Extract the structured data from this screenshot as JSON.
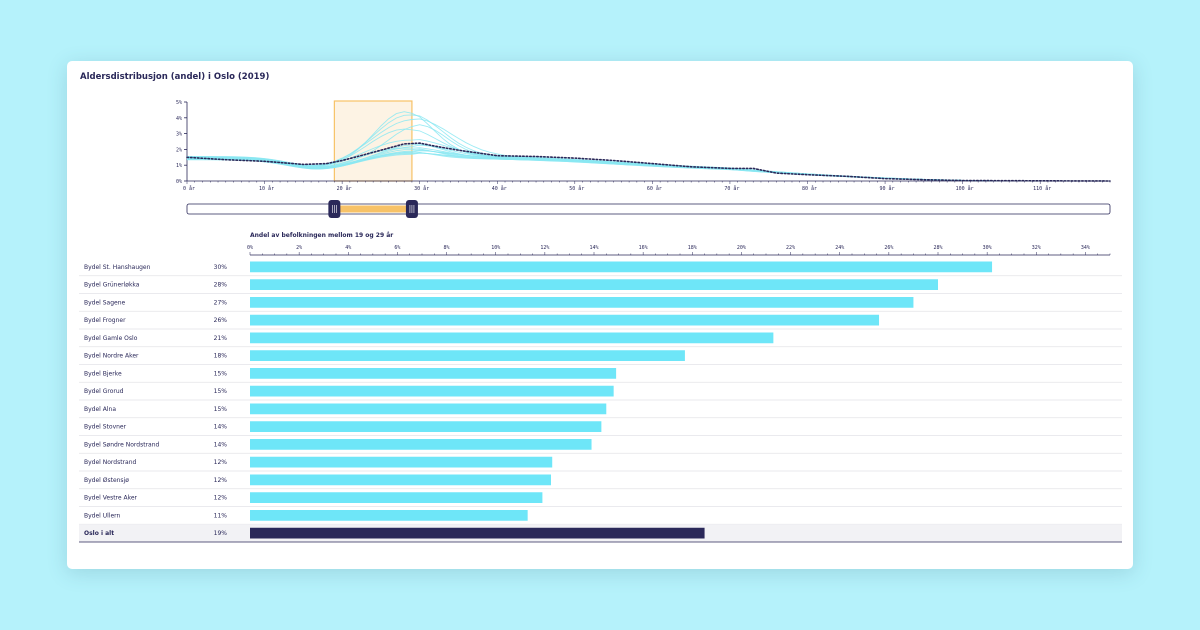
{
  "title": "Aldersdistribusjon (andel) i Oslo (2019)",
  "colors": {
    "line_district": "#8be8f2",
    "line_total": "#2a2859",
    "bar": "#6ee6f8",
    "bar_total": "#2a2859",
    "brush_fill": "#fdf3e4",
    "brush_stroke": "#f7c267",
    "slider_handle": "#2a2859"
  },
  "chart_data": [
    {
      "type": "line",
      "y_ticks": [
        "0%",
        "1%",
        "2%",
        "3%",
        "4%",
        "5%"
      ],
      "ylim": [
        0,
        5
      ],
      "x_ticks": [
        "0 år",
        "10 år",
        "20 år",
        "30 år",
        "40 år",
        "50 år",
        "60 år",
        "70 år",
        "80 år",
        "90 år",
        "100 år",
        "110 år"
      ],
      "xlim": [
        0,
        119
      ],
      "selection": [
        19,
        29
      ],
      "total_line_style": "dotted",
      "total_points": [
        [
          0,
          1.5
        ],
        [
          5,
          1.35
        ],
        [
          10,
          1.25
        ],
        [
          15,
          1.05
        ],
        [
          18,
          1.1
        ],
        [
          20,
          1.3
        ],
        [
          22,
          1.55
        ],
        [
          25,
          1.95
        ],
        [
          28,
          2.35
        ],
        [
          30,
          2.4
        ],
        [
          32,
          2.2
        ],
        [
          35,
          1.95
        ],
        [
          40,
          1.6
        ],
        [
          45,
          1.55
        ],
        [
          50,
          1.45
        ],
        [
          55,
          1.3
        ],
        [
          60,
          1.1
        ],
        [
          65,
          0.9
        ],
        [
          70,
          0.8
        ],
        [
          73,
          0.8
        ],
        [
          76,
          0.5
        ],
        [
          80,
          0.4
        ],
        [
          85,
          0.3
        ],
        [
          90,
          0.15
        ],
        [
          95,
          0.08
        ],
        [
          100,
          0.03
        ],
        [
          110,
          0.01
        ],
        [
          119,
          0
        ]
      ],
      "district_peaks": [
        4.4,
        4.2,
        3.9,
        3.5,
        3.3,
        2.6,
        2.3,
        2.2,
        2.1,
        2.0,
        1.9,
        1.85,
        1.8,
        1.75,
        1.7
      ]
    },
    {
      "type": "bar",
      "title": "Andel av befolkningen mellom 19 og 29 år",
      "xlim": [
        0,
        35
      ],
      "x_ticks": [
        "0%",
        "2%",
        "4%",
        "6%",
        "8%",
        "10%",
        "12%",
        "14%",
        "16%",
        "18%",
        "20%",
        "22%",
        "24%",
        "26%",
        "28%",
        "30%",
        "32%",
        "34%"
      ],
      "categories": [
        "Bydel St. Hanshaugen",
        "Bydel Grünerløkka",
        "Bydel Sagene",
        "Bydel Frogner",
        "Bydel Gamle Oslo",
        "Bydel Nordre Aker",
        "Bydel Bjerke",
        "Bydel Grorud",
        "Bydel Alna",
        "Bydel Stovner",
        "Bydel Søndre Nordstrand",
        "Bydel Nordstrand",
        "Bydel Østensjø",
        "Bydel Vestre Aker",
        "Bydel Ullern",
        "Oslo i alt"
      ],
      "labels": [
        "30%",
        "28%",
        "27%",
        "26%",
        "21%",
        "18%",
        "15%",
        "15%",
        "15%",
        "14%",
        "14%",
        "12%",
        "12%",
        "12%",
        "11%",
        "19%"
      ],
      "values": [
        30.2,
        28.0,
        27.0,
        25.6,
        21.3,
        17.7,
        14.9,
        14.8,
        14.5,
        14.3,
        13.9,
        12.3,
        12.25,
        11.9,
        11.3,
        18.5
      ]
    }
  ]
}
